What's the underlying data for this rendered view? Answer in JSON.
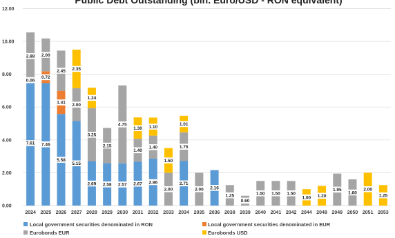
{
  "chart_data": {
    "type": "bar",
    "stacked": true,
    "title": "Public Debt Outstanding (bln. Euro/USD - RON equivalent)",
    "xlabel": "",
    "ylabel": "",
    "ylim": [
      0,
      12
    ],
    "yticks": [
      "0.00",
      "2.00",
      "4.00",
      "6.00",
      "8.00",
      "10.00",
      "12.00"
    ],
    "grid": true,
    "legend_position": "bottom",
    "categories": [
      "2024",
      "2025",
      "2026",
      "2027",
      "2028",
      "2029",
      "2030",
      "2031",
      "2032",
      "2033",
      "2034",
      "2035",
      "2036",
      "2038",
      "2039",
      "2040",
      "2041",
      "2042",
      "2044",
      "2048",
      "2049",
      "2050",
      "2051",
      "2053"
    ],
    "series": [
      {
        "name": "Local government securities denominated in RON",
        "color": "#5b9bd5",
        "values": [
          7.61,
          7.46,
          5.58,
          5.15,
          2.69,
          2.58,
          2.57,
          2.67,
          2.86,
          0,
          2.71,
          0,
          2.16,
          0,
          0,
          0,
          0,
          0,
          0,
          0,
          0,
          0,
          0,
          0
        ],
        "labels": [
          "7.61",
          "7.46",
          "5.58",
          "5.15",
          "2.69",
          "2.58",
          "2.57",
          "2.67",
          "2.86",
          "",
          "2.71",
          "",
          "2.16",
          "",
          "",
          "",
          "",
          "",
          "",
          "",
          "",
          "",
          "",
          ""
        ]
      },
      {
        "name": "Local government securities denominated in EUR",
        "color": "#ed7d31",
        "values": [
          0.06,
          0.72,
          1.41,
          0,
          0,
          0,
          0,
          0,
          0,
          0,
          0,
          0,
          0,
          0,
          0,
          0,
          0,
          0,
          0,
          0,
          0,
          0,
          0,
          0
        ],
        "labels": [
          "0.06",
          "0.72",
          "1.41",
          "",
          "",
          "",
          "",
          "",
          "",
          "",
          "",
          "",
          "",
          "",
          "",
          "",
          "",
          "",
          "",
          "",
          "",
          "",
          "",
          ""
        ]
      },
      {
        "name": "Eurobonds EUR",
        "color": "#a5a5a5",
        "values": [
          2.88,
          2.0,
          2.45,
          2.0,
          3.25,
          2.15,
          4.75,
          1.4,
          1.4,
          2.0,
          1.75,
          2.0,
          0,
          1.25,
          0.6,
          1.5,
          1.5,
          1.5,
          0,
          0,
          1.95,
          1.6,
          0,
          0
        ],
        "labels": [
          "2.88",
          "2.00",
          "2.45",
          "2.00",
          "3.25",
          "2.15",
          "4.75",
          "1.40",
          "1.40",
          "2.00",
          "1.75",
          "2.00",
          "",
          "1.25",
          "0.60",
          "1.50",
          "1.50",
          "1.50",
          "",
          "",
          "1.95",
          "1.60",
          "",
          ""
        ]
      },
      {
        "name": "Eurobonds USD",
        "color": "#ffc000",
        "values": [
          0,
          0,
          0,
          2.35,
          1.24,
          0,
          0,
          1.3,
          1.1,
          1.5,
          1.01,
          0,
          0,
          0,
          0,
          0,
          0,
          0,
          1.0,
          1.2,
          0,
          0,
          2.0,
          1.25
        ],
        "labels": [
          "",
          "",
          "",
          "2.35",
          "1.24",
          "",
          "",
          "1.30",
          "1.10",
          "1.50",
          "1.01",
          "",
          "",
          "",
          "",
          "",
          "",
          "",
          "1.00",
          "1.20",
          "",
          "",
          "2.00",
          "1.25"
        ]
      }
    ]
  }
}
